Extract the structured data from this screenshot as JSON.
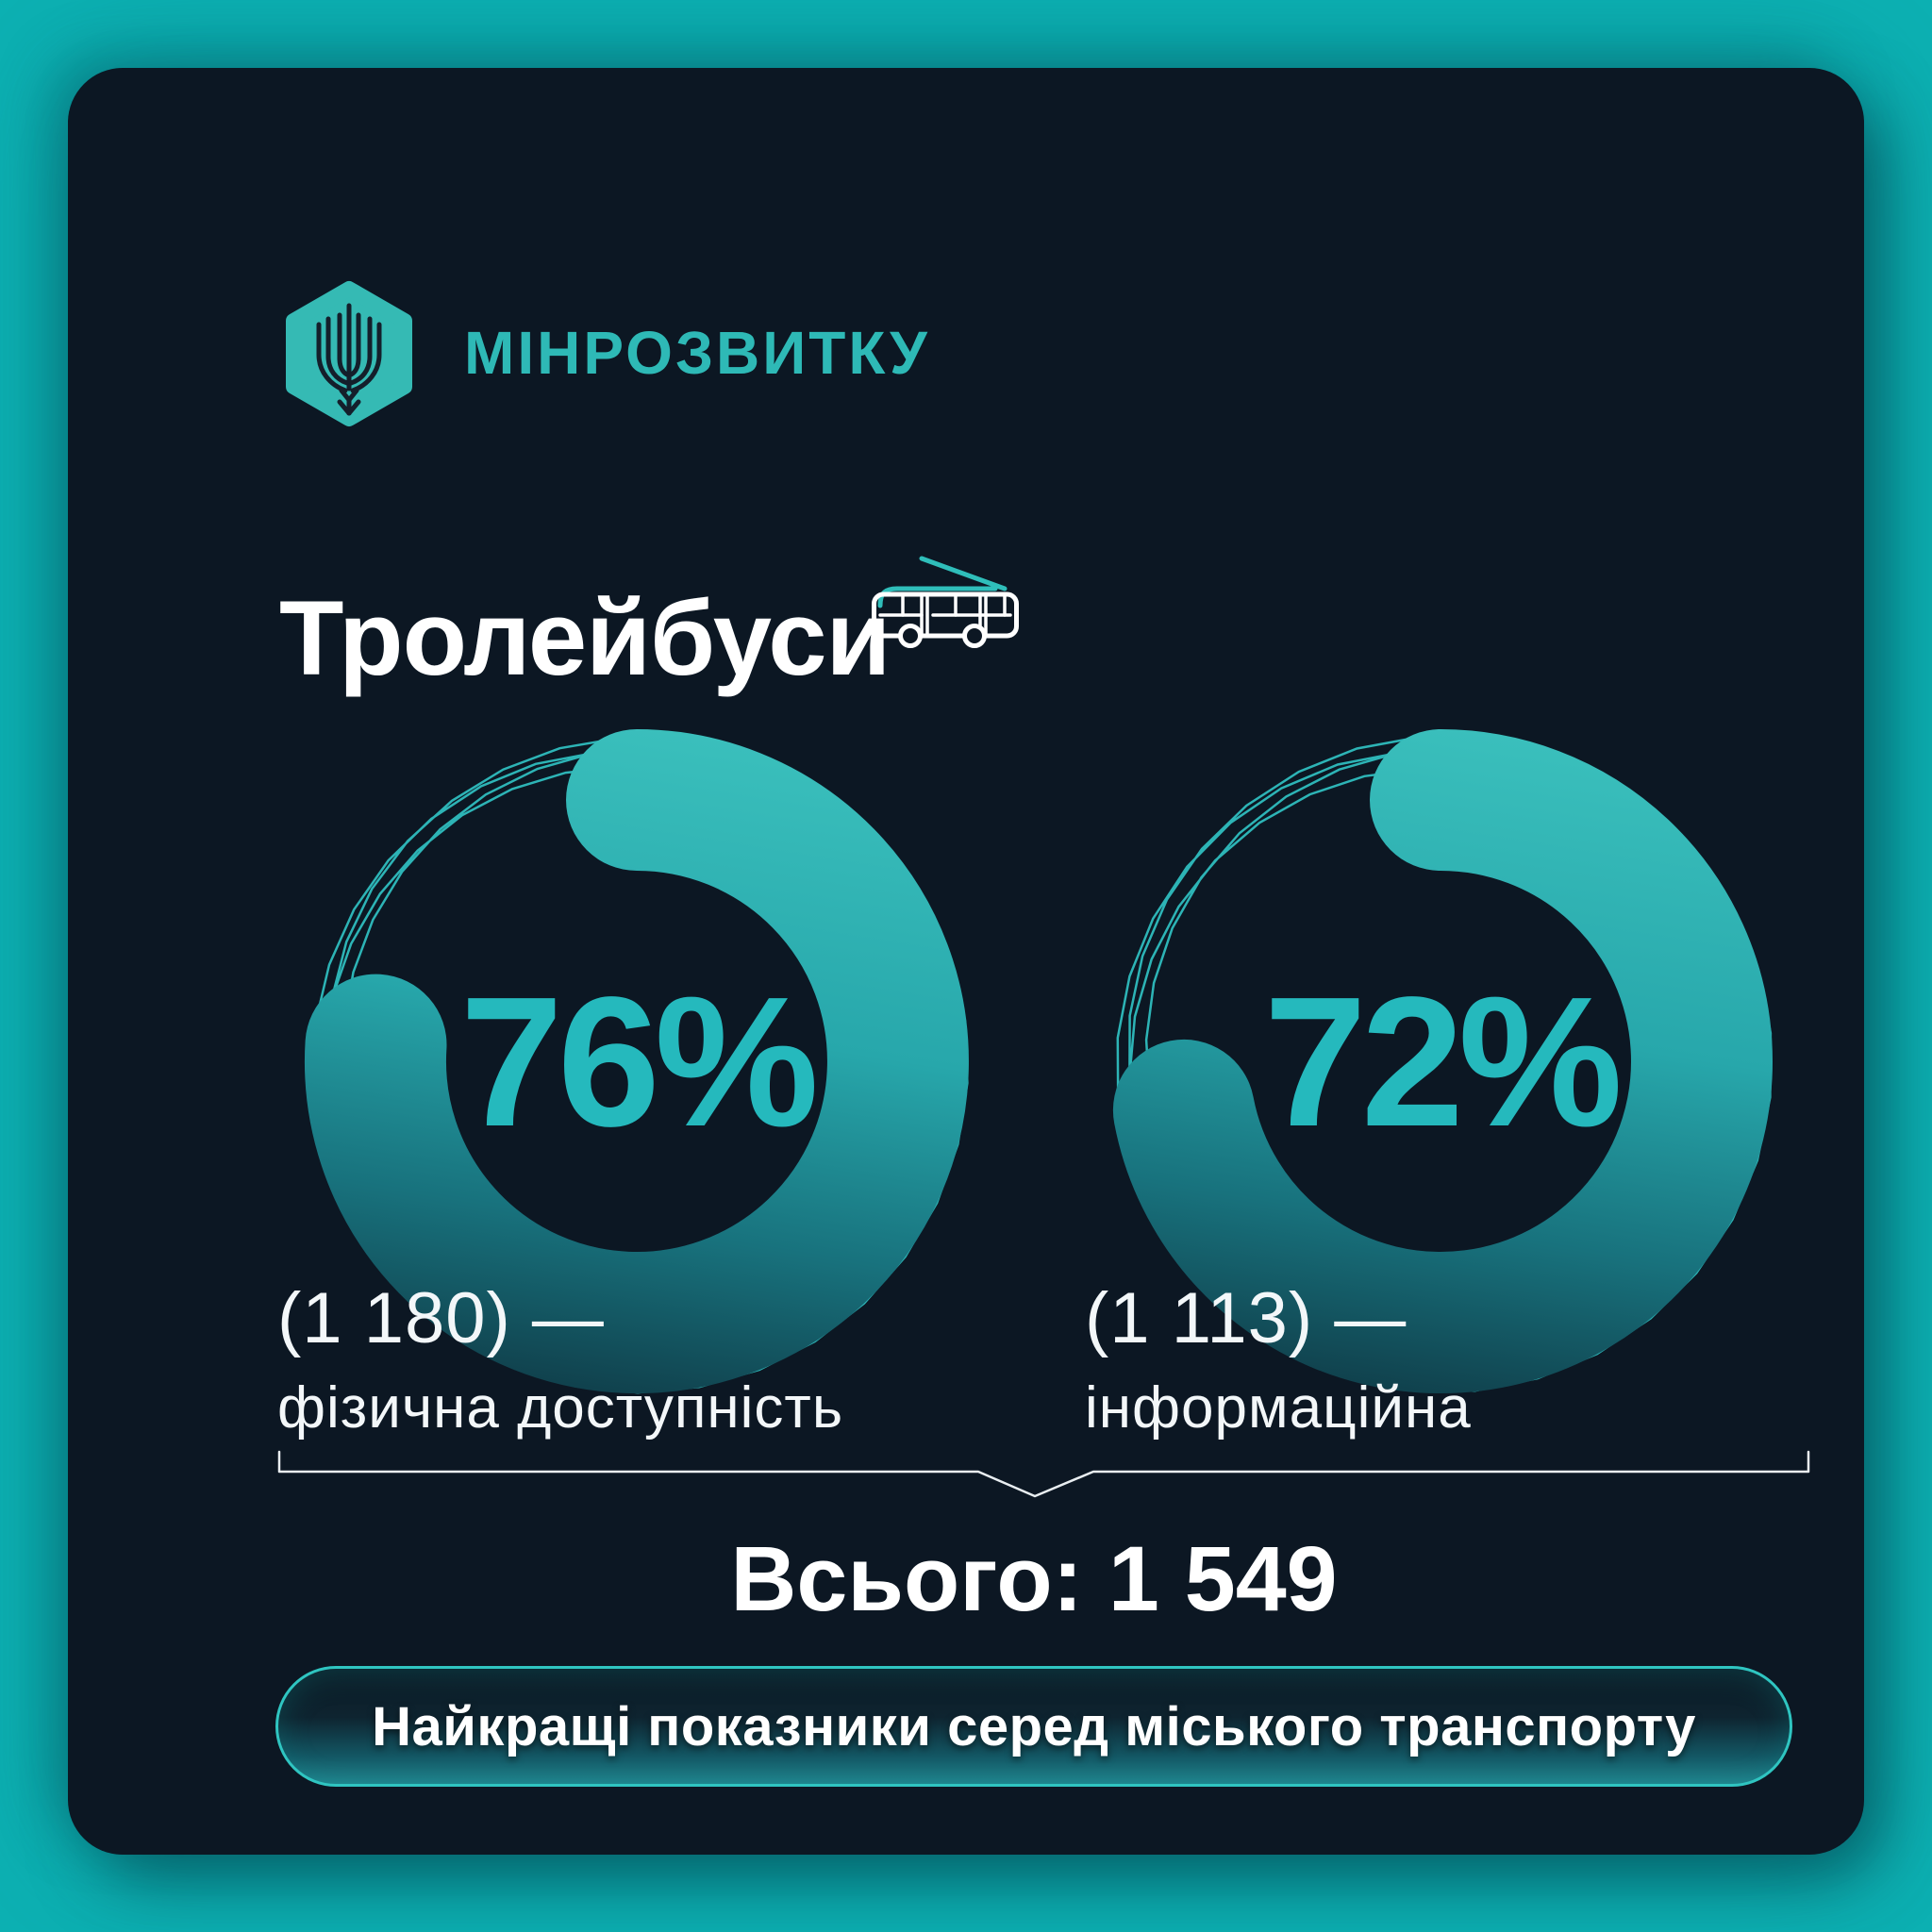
{
  "colors": {
    "page_bg": "#0db1b3",
    "card_bg": "#0c1723",
    "accent_teal": "#2fbdba",
    "percent_text": "#25b9bd",
    "arc_gradient_top": "#3abfbc",
    "arc_gradient_bottom": "#0f3a46",
    "pill_border": "#2fc5c1",
    "text_white": "#ffffff"
  },
  "header": {
    "brand": "МІНРОЗВИТКУ",
    "logo_icon": "ukraine-trident-hexagon"
  },
  "page": {
    "title": "Тролейбуси",
    "title_icon": "trolleybus-icon"
  },
  "chart_data": [
    {
      "type": "donut",
      "value": 76,
      "max": 100,
      "center_label": "76%",
      "count": 1180,
      "count_label": "(1 180) —",
      "category": "фізична доступність",
      "start": "top",
      "direction": "clockwise",
      "legend_position": "below-left"
    },
    {
      "type": "donut",
      "value": 72,
      "max": 100,
      "center_label": "72%",
      "count": 1113,
      "count_label": "(1 113) —",
      "category": "інформаційна",
      "start": "top",
      "direction": "clockwise",
      "legend_position": "below-left"
    }
  ],
  "summary": {
    "total": 1549,
    "total_label": "Всього: 1 549"
  },
  "footer": {
    "badge": "Найкращі показники серед міського транспорту"
  }
}
